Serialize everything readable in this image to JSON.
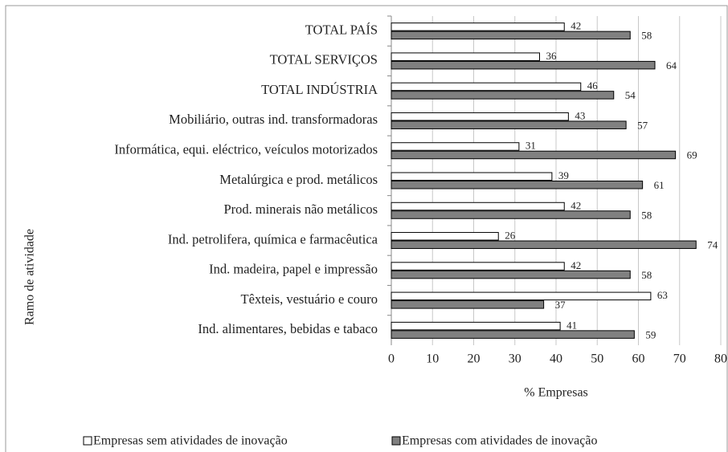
{
  "chart_data": {
    "type": "hbar",
    "categories": [
      "TOTAL PAÍS",
      "TOTAL SERVIÇOS",
      "TOTAL INDÚSTRIA",
      "Mobiliário, outras ind. transformadoras",
      "Informática, equi. eléctrico, veículos motorizados",
      "Metalúrgica e prod. metálicos",
      "Prod. minerais não metálicos",
      "Ind. petrolifera, química e farmacêutica",
      "Ind. madeira, papel e impressão",
      "Têxteis, vestuário e couro",
      "Ind. alimentares, bebidas e tabaco"
    ],
    "series": [
      {
        "name": "Empresas sem atividades de inovação",
        "color": "#ffffff",
        "values": [
          42,
          36,
          46,
          43,
          31,
          39,
          42,
          26,
          42,
          63,
          41
        ]
      },
      {
        "name": "Empresas com atividades de inovação",
        "color": "#808080",
        "values": [
          58,
          64,
          54,
          57,
          69,
          61,
          58,
          74,
          58,
          37,
          59
        ]
      }
    ],
    "xlabel": "% Empresas",
    "ylabel": "Ramo de atividade",
    "xlim": [
      0,
      80
    ],
    "xticks": [
      0,
      10,
      20,
      30,
      40,
      50,
      60,
      70,
      80
    ],
    "grid": true,
    "legend": "bottom"
  }
}
